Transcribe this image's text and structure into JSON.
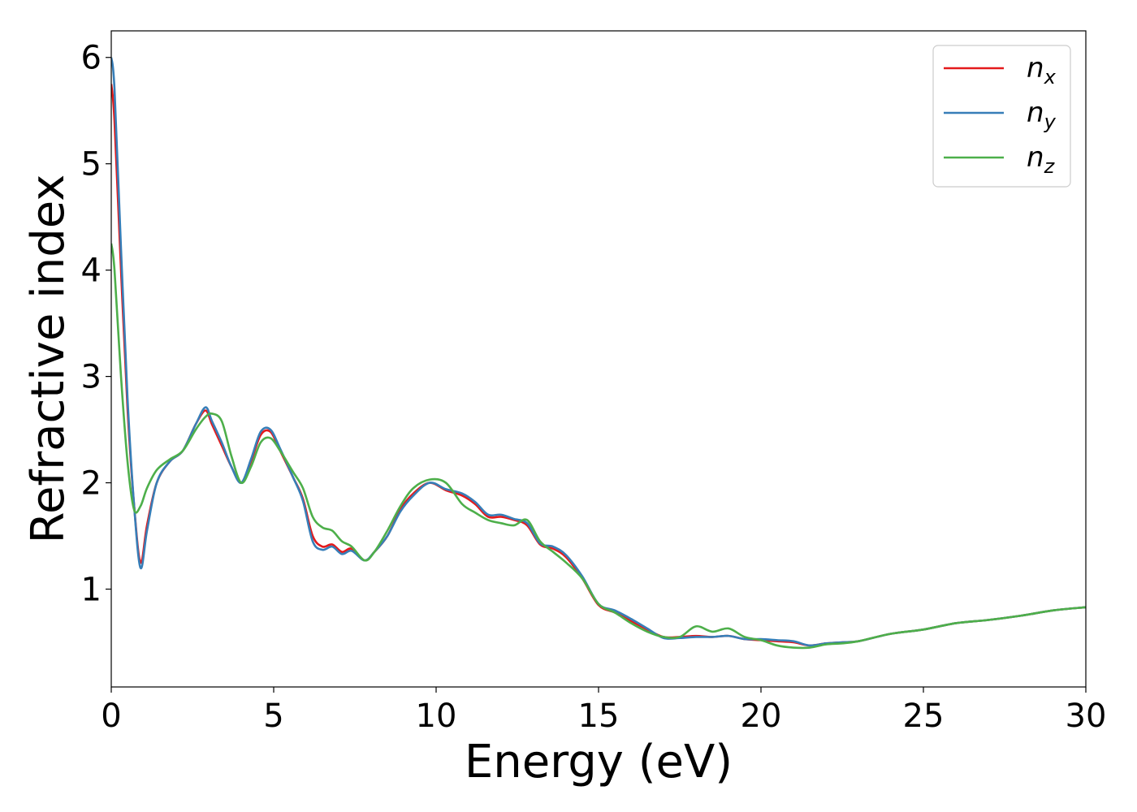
{
  "chart_data": {
    "type": "line",
    "xlabel": "Energy (eV)",
    "ylabel": "Refractive index",
    "xlim": [
      0,
      30
    ],
    "ylim": [
      0.08,
      6.25
    ],
    "xticks": [
      0,
      5,
      10,
      15,
      20,
      25,
      30
    ],
    "yticks": [
      1,
      2,
      3,
      4,
      5,
      6
    ],
    "grid": false,
    "legend_position": "top-right",
    "colors": {
      "nx": "#e41a1c",
      "ny": "#377eb8",
      "nz": "#4daf4a"
    },
    "series": [
      {
        "key": "nx",
        "name": "n",
        "subscript": "x",
        "x": [
          0,
          0.1,
          0.3,
          0.5,
          0.7,
          0.9,
          1.1,
          1.4,
          1.8,
          2.2,
          2.6,
          2.9,
          3.1,
          3.4,
          3.7,
          4.0,
          4.3,
          4.6,
          4.9,
          5.2,
          5.6,
          5.9,
          6.2,
          6.5,
          6.8,
          7.1,
          7.4,
          7.8,
          8.1,
          8.5,
          8.9,
          9.3,
          9.8,
          10.3,
          10.8,
          11.2,
          11.6,
          12.0,
          12.4,
          12.8,
          13.2,
          13.6,
          14.0,
          14.5,
          15.0,
          15.5,
          16.0,
          16.5,
          17.0,
          17.5,
          18.0,
          18.5,
          19.0,
          19.5,
          20.0,
          20.5,
          21.0,
          21.5,
          22.0,
          22.5,
          23.0,
          24.0,
          25.0,
          26.0,
          27.0,
          28.0,
          29.0,
          30.0
        ],
        "y": [
          5.75,
          5.4,
          4.0,
          2.7,
          1.8,
          1.25,
          1.6,
          2.0,
          2.2,
          2.3,
          2.55,
          2.68,
          2.55,
          2.35,
          2.15,
          2.0,
          2.2,
          2.45,
          2.48,
          2.3,
          2.05,
          1.85,
          1.5,
          1.4,
          1.42,
          1.35,
          1.38,
          1.27,
          1.35,
          1.5,
          1.75,
          1.9,
          2.0,
          1.93,
          1.88,
          1.8,
          1.68,
          1.68,
          1.65,
          1.6,
          1.42,
          1.38,
          1.3,
          1.1,
          0.85,
          0.78,
          0.7,
          0.62,
          0.55,
          0.55,
          0.56,
          0.55,
          0.56,
          0.53,
          0.52,
          0.51,
          0.5,
          0.47,
          0.49,
          0.5,
          0.51,
          0.58,
          0.62,
          0.68,
          0.71,
          0.75,
          0.8,
          0.83
        ]
      },
      {
        "key": "ny",
        "name": "n",
        "subscript": "y",
        "x": [
          0,
          0.1,
          0.3,
          0.5,
          0.7,
          0.9,
          1.1,
          1.4,
          1.8,
          2.2,
          2.6,
          2.9,
          3.1,
          3.4,
          3.7,
          4.0,
          4.3,
          4.6,
          4.9,
          5.2,
          5.6,
          5.9,
          6.2,
          6.5,
          6.8,
          7.1,
          7.4,
          7.8,
          8.1,
          8.5,
          8.9,
          9.3,
          9.8,
          10.3,
          10.8,
          11.2,
          11.6,
          12.0,
          12.4,
          12.8,
          13.2,
          13.6,
          14.0,
          14.5,
          15.0,
          15.5,
          16.0,
          16.5,
          17.0,
          17.5,
          18.0,
          18.5,
          19.0,
          19.5,
          20.0,
          20.5,
          21.0,
          21.5,
          22.0,
          22.5,
          23.0,
          24.0,
          25.0,
          26.0,
          27.0,
          28.0,
          29.0,
          30.0
        ],
        "y": [
          6.0,
          5.7,
          4.2,
          2.8,
          1.8,
          1.2,
          1.55,
          2.0,
          2.2,
          2.3,
          2.55,
          2.71,
          2.58,
          2.38,
          2.15,
          2.0,
          2.22,
          2.48,
          2.5,
          2.32,
          2.05,
          1.83,
          1.45,
          1.37,
          1.4,
          1.33,
          1.36,
          1.27,
          1.35,
          1.5,
          1.73,
          1.88,
          2.0,
          1.94,
          1.9,
          1.82,
          1.7,
          1.7,
          1.66,
          1.62,
          1.43,
          1.4,
          1.32,
          1.12,
          0.86,
          0.8,
          0.72,
          0.63,
          0.54,
          0.54,
          0.55,
          0.55,
          0.56,
          0.53,
          0.53,
          0.52,
          0.51,
          0.47,
          0.49,
          0.5,
          0.51,
          0.58,
          0.62,
          0.68,
          0.71,
          0.75,
          0.8,
          0.83
        ]
      },
      {
        "key": "nz",
        "name": "n",
        "subscript": "z",
        "x": [
          0,
          0.1,
          0.3,
          0.5,
          0.7,
          0.9,
          1.1,
          1.4,
          1.8,
          2.2,
          2.6,
          2.9,
          3.1,
          3.4,
          3.7,
          4.0,
          4.3,
          4.6,
          4.9,
          5.2,
          5.6,
          5.9,
          6.2,
          6.5,
          6.8,
          7.1,
          7.4,
          7.8,
          8.1,
          8.5,
          8.9,
          9.3,
          9.8,
          10.3,
          10.8,
          11.2,
          11.6,
          12.0,
          12.4,
          12.8,
          13.2,
          13.6,
          14.0,
          14.5,
          15.0,
          15.5,
          16.0,
          16.5,
          17.0,
          17.5,
          18.0,
          18.5,
          19.0,
          19.5,
          20.0,
          20.5,
          21.0,
          21.5,
          22.0,
          22.5,
          23.0,
          24.0,
          25.0,
          26.0,
          27.0,
          28.0,
          29.0,
          30.0
        ],
        "y": [
          4.25,
          4.0,
          3.0,
          2.2,
          1.75,
          1.78,
          1.95,
          2.12,
          2.22,
          2.3,
          2.5,
          2.62,
          2.65,
          2.58,
          2.25,
          2.0,
          2.15,
          2.38,
          2.42,
          2.3,
          2.1,
          1.95,
          1.68,
          1.58,
          1.55,
          1.45,
          1.4,
          1.27,
          1.35,
          1.55,
          1.78,
          1.95,
          2.03,
          2.0,
          1.8,
          1.72,
          1.65,
          1.62,
          1.6,
          1.65,
          1.45,
          1.35,
          1.25,
          1.1,
          0.86,
          0.78,
          0.68,
          0.6,
          0.55,
          0.55,
          0.65,
          0.6,
          0.63,
          0.55,
          0.52,
          0.47,
          0.45,
          0.45,
          0.48,
          0.49,
          0.51,
          0.58,
          0.62,
          0.68,
          0.71,
          0.75,
          0.8,
          0.83
        ]
      }
    ]
  }
}
